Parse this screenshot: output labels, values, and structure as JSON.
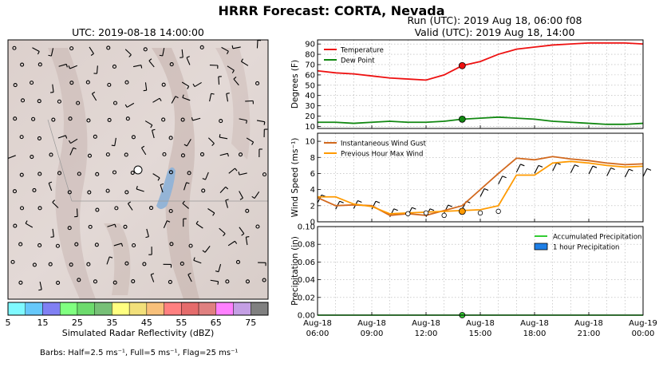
{
  "figure": {
    "title": "HRRR Forecast: CORTA, Nevada",
    "map_title": "UTC: 2019-08-18 14:00:00",
    "run_line": "Run (UTC): 2019 Aug 18, 06:00 f08",
    "valid_line": "Valid (UTC): 2019 Aug 18, 14:00",
    "colorbar_label": "Simulated Radar Reflectivity (dBZ)",
    "barbs_note": "Barbs: Half=2.5 ms⁻¹, Full=5 ms⁻¹, Flag=25 ms⁻¹"
  },
  "colorbar": {
    "colors": [
      "#7ff9ff",
      "#66c8fa",
      "#8080f3",
      "#80ff80",
      "#6ddb6d",
      "#77c077",
      "#ffff80",
      "#f2e07a",
      "#f8c07a",
      "#ff8080",
      "#e56c6c",
      "#e08080",
      "#ff80ff",
      "#c49fe4",
      "#808080"
    ],
    "ticks": [
      "5",
      "15",
      "25",
      "35",
      "45",
      "55",
      "65",
      "75"
    ],
    "tick_values": [
      5,
      15,
      25,
      35,
      45,
      55,
      65,
      75
    ],
    "range": [
      5,
      80
    ]
  },
  "chart_data": [
    {
      "type": "line",
      "name": "temperature",
      "ylabel": "Degrees (F)",
      "ylim": [
        8,
        94
      ],
      "yticks": [
        10,
        20,
        30,
        40,
        50,
        60,
        70,
        80,
        90
      ],
      "xlim": [
        0,
        18
      ],
      "grid": true,
      "legend_position": "top-left",
      "highlight_x": 8,
      "series": [
        {
          "name": "Temperature",
          "color": "#ee1111",
          "x": [
            0,
            1,
            2,
            3,
            4,
            5,
            6,
            7,
            8,
            9,
            10,
            11,
            12,
            13,
            14,
            15,
            16,
            17,
            18
          ],
          "values": [
            64,
            62,
            61,
            59,
            57,
            56,
            55,
            60,
            69,
            73,
            80,
            85,
            87,
            89,
            90,
            91,
            91,
            91,
            90
          ]
        },
        {
          "name": "Dew Point",
          "color": "#118811",
          "x": [
            0,
            1,
            2,
            3,
            4,
            5,
            6,
            7,
            8,
            9,
            10,
            11,
            12,
            13,
            14,
            15,
            16,
            17,
            18
          ],
          "values": [
            14,
            14,
            13,
            14,
            15,
            14,
            14,
            15,
            17,
            18,
            19,
            18,
            17,
            15,
            14,
            13,
            12,
            12,
            13
          ]
        }
      ]
    },
    {
      "type": "line",
      "name": "wind",
      "ylabel": "Wind Speed (ms⁻¹)",
      "ylim": [
        0,
        11
      ],
      "yticks": [
        0,
        2,
        4,
        6,
        8,
        10
      ],
      "xlim": [
        0,
        18
      ],
      "grid": true,
      "legend_position": "top-left",
      "highlight_x": 8,
      "highlight_y": 1.3,
      "series": [
        {
          "name": "Instantaneous Wind Gust",
          "color": "#d2691e",
          "x": [
            0,
            1,
            2,
            3,
            4,
            5,
            6,
            7,
            8,
            9,
            10,
            11,
            12,
            13,
            14,
            15,
            16,
            17,
            18
          ],
          "values": [
            3.0,
            2.0,
            2.1,
            2.0,
            0.8,
            1.0,
            0.8,
            1.4,
            2.0,
            4.0,
            6.0,
            7.9,
            7.7,
            8.1,
            7.8,
            7.6,
            7.3,
            7.1,
            7.2
          ]
        },
        {
          "name": "Previous Hour Max Wind",
          "color": "#ff9a00",
          "x": [
            0,
            1,
            2,
            3,
            4,
            5,
            6,
            7,
            8,
            9,
            10,
            11,
            12,
            13,
            14,
            15,
            16,
            17,
            18
          ],
          "values": [
            3.1,
            3.1,
            2.2,
            1.9,
            1.0,
            1.1,
            1.2,
            1.3,
            1.4,
            1.5,
            2.0,
            5.8,
            5.8,
            7.3,
            7.5,
            7.3,
            7.0,
            6.8,
            6.9
          ]
        }
      ],
      "scatter_points": {
        "x": [
          5,
          6,
          7,
          8,
          9,
          10
        ],
        "values": [
          1.0,
          1.1,
          0.8,
          1.2,
          1.1,
          1.3
        ]
      }
    },
    {
      "type": "bar",
      "name": "precipitation",
      "ylabel": "Precipitation (in)",
      "ylim": [
        0,
        0.1
      ],
      "yticks": [
        "0.00",
        "0.02",
        "0.04",
        "0.06",
        "0.08",
        "0.10"
      ],
      "ytick_values": [
        0,
        0.02,
        0.04,
        0.06,
        0.08,
        0.1
      ],
      "xlim": [
        0,
        18
      ],
      "grid": true,
      "legend_position": "top-right",
      "highlight_x": 8,
      "series": [
        {
          "name": "Accumulated Precipitation",
          "color": "#33cc33",
          "x": [
            0,
            18
          ],
          "values": [
            0,
            0
          ]
        },
        {
          "name": "1 hour Precipitation",
          "color": "#1e7fe6",
          "x": [],
          "values": []
        }
      ],
      "xticks": [
        "Aug-18\n06:00",
        "Aug-18\n09:00",
        "Aug-18\n12:00",
        "Aug-18\n15:00",
        "Aug-18\n18:00",
        "Aug-18\n21:00",
        "Aug-19\n00:00"
      ],
      "xtick_values": [
        0,
        3,
        6,
        9,
        12,
        15,
        18
      ]
    }
  ]
}
